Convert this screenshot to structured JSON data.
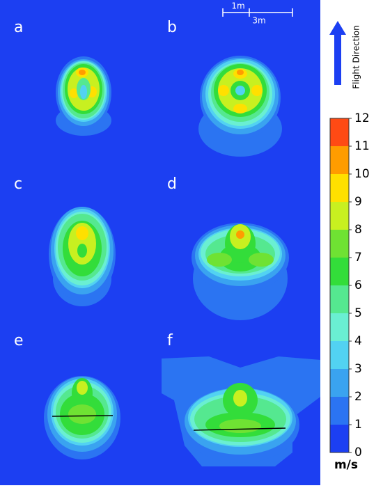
{
  "panels": [
    "a",
    "b",
    "c",
    "d",
    "e",
    "f"
  ],
  "scale_bar": {
    "short": "1m",
    "long": "3m"
  },
  "flight_direction": "Flight Direction",
  "colorbar": {
    "ticks": [
      0,
      1,
      2,
      3,
      4,
      5,
      6,
      7,
      8,
      9,
      10,
      11,
      12
    ],
    "colors": [
      "#1c3ff2",
      "#2b74f2",
      "#3aa3f0",
      "#52d2f2",
      "#6aefd2",
      "#55e890",
      "#33dd3a",
      "#6fe233",
      "#c8f020",
      "#ffe000",
      "#ff9c00",
      "#ff4a14"
    ],
    "unit": "m/s"
  }
}
